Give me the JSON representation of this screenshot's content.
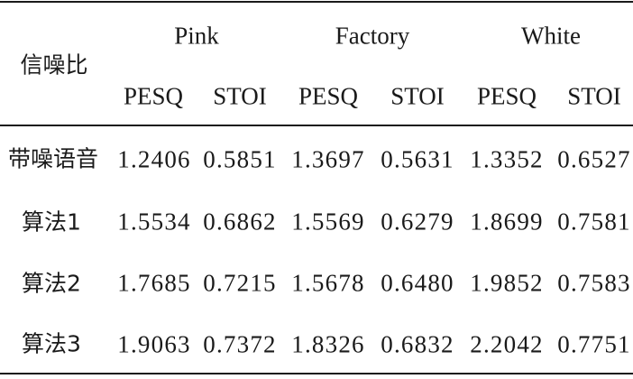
{
  "table": {
    "row_header_label": "信噪比",
    "noise_types": [
      "Pink",
      "Factory",
      "White"
    ],
    "metrics": [
      "PESQ",
      "STOI",
      "PESQ",
      "STOI",
      "PESQ",
      "STOI"
    ],
    "rows": [
      {
        "label": "带噪语音",
        "values": [
          "1.2406",
          "0.5851",
          "1.3697",
          "0.5631",
          "1.3352",
          "0.6527"
        ]
      },
      {
        "label": "算法1",
        "values": [
          "1.5534",
          "0.6862",
          "1.5569",
          "0.6279",
          "1.8699",
          "0.7581"
        ]
      },
      {
        "label": "算法2",
        "values": [
          "1.7685",
          "0.7215",
          "1.5678",
          "0.6480",
          "1.9852",
          "0.7583"
        ]
      },
      {
        "label": "算法3",
        "values": [
          "1.9063",
          "0.7372",
          "1.8326",
          "0.6832",
          "2.2042",
          "0.7751"
        ]
      }
    ]
  }
}
